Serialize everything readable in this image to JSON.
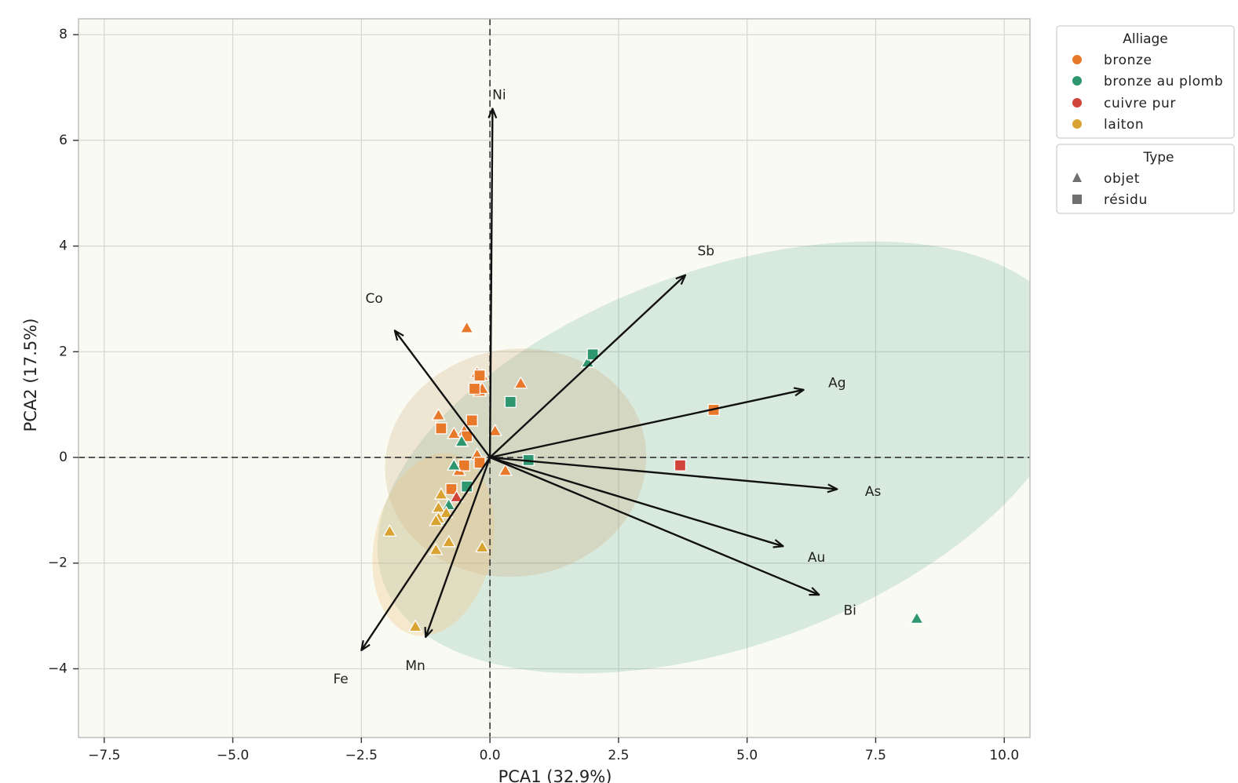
{
  "chart_data": {
    "type": "scatter",
    "subtype": "pca-biplot",
    "xlabel": "PCA1 (32.9%)",
    "ylabel": "PCA2 (17.5%)",
    "xlim": [
      -8.0,
      10.5
    ],
    "ylim": [
      -5.3,
      8.3
    ],
    "xticks": [
      -7.5,
      -5.0,
      -2.5,
      0.0,
      2.5,
      5.0,
      7.5,
      10.0
    ],
    "xtick_labels": [
      "−7.5",
      "−5.0",
      "−2.5",
      "0.0",
      "2.5",
      "5.0",
      "7.5",
      "10.0"
    ],
    "yticks": [
      -4,
      -2,
      0,
      2,
      4,
      6,
      8
    ],
    "ytick_labels": [
      "−4",
      "−2",
      "0",
      "2",
      "4",
      "6",
      "8"
    ],
    "grid": true,
    "reference_lines": {
      "x": 0,
      "y": 0,
      "style": "dashed"
    },
    "background": "#f9fbf2",
    "colors": {
      "bronze": "#e8782a",
      "bronze au plomb": "#2e9770",
      "cuivre pur": "#d0443a",
      "laiton": "#d9a331",
      "arrow": "#111111",
      "grid": "#d4d6d2",
      "legend_marker": "#707070"
    },
    "ellipses": [
      {
        "group": "bronze au plomb",
        "center": [
          4.6,
          0.0
        ],
        "width": 14.2,
        "height": 7.1,
        "angle": -20,
        "fill": "#2e9770",
        "opacity": 0.16
      },
      {
        "group": "bronze",
        "center": [
          0.5,
          -0.1
        ],
        "width": 5.1,
        "height": 4.3,
        "angle": -10,
        "fill": "#c9935a",
        "opacity": 0.2
      },
      {
        "group": "laiton",
        "center": [
          -1.1,
          -1.65
        ],
        "width": 2.3,
        "height": 3.5,
        "angle": 12,
        "fill": "#f2c68a",
        "opacity": 0.35
      }
    ],
    "loadings": [
      {
        "label": "Ni",
        "x": 0.05,
        "y": 6.6,
        "label_x": 0.18,
        "label_y": 6.85
      },
      {
        "label": "Sb",
        "x": 3.8,
        "y": 3.45,
        "label_x": 4.2,
        "label_y": 3.9
      },
      {
        "label": "Co",
        "x": -1.85,
        "y": 2.4,
        "label_x": -2.25,
        "label_y": 3.0
      },
      {
        "label": "Ag",
        "x": 6.1,
        "y": 1.28,
        "label_x": 6.75,
        "label_y": 1.4
      },
      {
        "label": "As",
        "x": 6.75,
        "y": -0.6,
        "label_x": 7.45,
        "label_y": -0.65
      },
      {
        "label": "Au",
        "x": 5.7,
        "y": -1.68,
        "label_x": 6.35,
        "label_y": -1.9
      },
      {
        "label": "Bi",
        "x": 6.4,
        "y": -2.6,
        "label_x": 7.0,
        "label_y": -2.9
      },
      {
        "label": "Fe",
        "x": -2.5,
        "y": -3.65,
        "label_x": -2.9,
        "label_y": -4.2
      },
      {
        "label": "Mn",
        "x": -1.25,
        "y": -3.4,
        "label_x": -1.45,
        "label_y": -3.95
      }
    ],
    "series": [
      {
        "alloy": "bronze",
        "type": "objet",
        "points": [
          [
            -0.45,
            2.45
          ],
          [
            -0.25,
            1.6
          ],
          [
            -0.15,
            1.55
          ],
          [
            -0.2,
            1.25
          ],
          [
            -0.15,
            1.3
          ],
          [
            0.6,
            1.4
          ],
          [
            -1.0,
            0.8
          ],
          [
            -0.7,
            0.45
          ],
          [
            -0.5,
            0.5
          ],
          [
            0.1,
            0.5
          ],
          [
            -0.25,
            0.05
          ],
          [
            -0.55,
            -0.15
          ],
          [
            -0.6,
            -0.25
          ],
          [
            0.3,
            -0.25
          ]
        ]
      },
      {
        "alloy": "bronze",
        "type": "résidu",
        "points": [
          [
            -0.3,
            1.3
          ],
          [
            -0.2,
            1.55
          ],
          [
            -0.95,
            0.55
          ],
          [
            -0.35,
            0.7
          ],
          [
            -0.45,
            0.4
          ],
          [
            -0.2,
            -0.1
          ],
          [
            -0.5,
            -0.15
          ],
          [
            -0.75,
            -0.6
          ],
          [
            4.35,
            0.9
          ]
        ]
      },
      {
        "alloy": "bronze au plomb",
        "type": "objet",
        "points": [
          [
            1.9,
            1.8
          ],
          [
            -0.55,
            0.3
          ],
          [
            -0.7,
            -0.15
          ],
          [
            -0.8,
            -0.9
          ],
          [
            8.3,
            -3.05
          ]
        ]
      },
      {
        "alloy": "bronze au plomb",
        "type": "résidu",
        "points": [
          [
            2.0,
            1.95
          ],
          [
            0.4,
            1.05
          ],
          [
            0.75,
            -0.05
          ],
          [
            -0.45,
            -0.55
          ]
        ]
      },
      {
        "alloy": "cuivre pur",
        "type": "objet",
        "points": [
          [
            -0.65,
            -0.75
          ]
        ]
      },
      {
        "alloy": "cuivre pur",
        "type": "résidu",
        "points": [
          [
            3.7,
            -0.15
          ]
        ]
      },
      {
        "alloy": "laiton",
        "type": "objet",
        "points": [
          [
            -0.95,
            -0.7
          ],
          [
            -1.0,
            -0.95
          ],
          [
            -0.85,
            -1.05
          ],
          [
            -1.0,
            -1.15
          ],
          [
            -1.05,
            -1.2
          ],
          [
            -1.95,
            -1.4
          ],
          [
            -0.8,
            -1.6
          ],
          [
            -1.05,
            -1.75
          ],
          [
            -0.15,
            -1.7
          ],
          [
            -1.45,
            -3.2
          ]
        ]
      }
    ]
  },
  "legend": {
    "alloy": {
      "title": "Alliage",
      "items": [
        {
          "label": "bronze",
          "color": "#e8782a"
        },
        {
          "label": "bronze au plomb",
          "color": "#2e9770"
        },
        {
          "label": "cuivre pur",
          "color": "#d0443a"
        },
        {
          "label": "laiton",
          "color": "#d9a331"
        }
      ]
    },
    "type": {
      "title": "Type",
      "items": [
        {
          "label": "objet",
          "marker": "triangle"
        },
        {
          "label": "résidu",
          "marker": "square"
        }
      ]
    }
  }
}
